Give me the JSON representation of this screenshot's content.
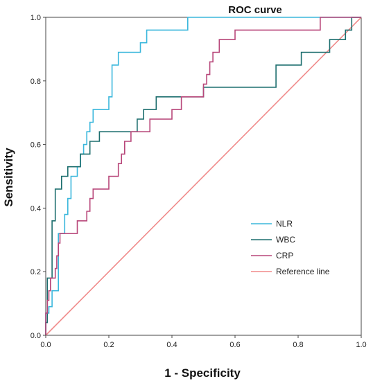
{
  "chart_data": {
    "type": "line",
    "title": "ROC curve",
    "xlabel": "1 - Specificity",
    "ylabel": "Sensitivity",
    "xlim": [
      0,
      1
    ],
    "ylim": [
      0,
      1
    ],
    "x_ticks": [
      "0.0",
      "0.2",
      "0.4",
      "0.6",
      "0.8",
      "1.0"
    ],
    "y_ticks": [
      "0.0",
      "0.2",
      "0.4",
      "0.6",
      "0.8",
      "1.0"
    ],
    "grid": false,
    "legend_position": "bottom-right",
    "series": [
      {
        "name": "NLR",
        "color": "#3ab7dc",
        "points": [
          [
            0,
            0
          ],
          [
            0,
            0.07
          ],
          [
            0.01,
            0.07
          ],
          [
            0.01,
            0.09
          ],
          [
            0.02,
            0.09
          ],
          [
            0.02,
            0.14
          ],
          [
            0.04,
            0.14
          ],
          [
            0.04,
            0.32
          ],
          [
            0.06,
            0.32
          ],
          [
            0.06,
            0.38
          ],
          [
            0.07,
            0.38
          ],
          [
            0.07,
            0.43
          ],
          [
            0.08,
            0.43
          ],
          [
            0.08,
            0.5
          ],
          [
            0.1,
            0.5
          ],
          [
            0.1,
            0.53
          ],
          [
            0.11,
            0.53
          ],
          [
            0.11,
            0.57
          ],
          [
            0.12,
            0.57
          ],
          [
            0.12,
            0.6
          ],
          [
            0.13,
            0.6
          ],
          [
            0.13,
            0.64
          ],
          [
            0.14,
            0.64
          ],
          [
            0.14,
            0.67
          ],
          [
            0.15,
            0.67
          ],
          [
            0.15,
            0.71
          ],
          [
            0.2,
            0.71
          ],
          [
            0.2,
            0.75
          ],
          [
            0.21,
            0.75
          ],
          [
            0.21,
            0.85
          ],
          [
            0.23,
            0.85
          ],
          [
            0.23,
            0.89
          ],
          [
            0.3,
            0.89
          ],
          [
            0.3,
            0.92
          ],
          [
            0.32,
            0.92
          ],
          [
            0.32,
            0.96
          ],
          [
            0.45,
            0.96
          ],
          [
            0.45,
            1
          ],
          [
            1,
            1
          ]
        ]
      },
      {
        "name": "WBC",
        "color": "#1c6e6e",
        "points": [
          [
            0,
            0
          ],
          [
            0,
            0.04
          ],
          [
            0.005,
            0.04
          ],
          [
            0.005,
            0.18
          ],
          [
            0.02,
            0.18
          ],
          [
            0.02,
            0.36
          ],
          [
            0.03,
            0.36
          ],
          [
            0.03,
            0.46
          ],
          [
            0.05,
            0.46
          ],
          [
            0.05,
            0.5
          ],
          [
            0.07,
            0.5
          ],
          [
            0.07,
            0.53
          ],
          [
            0.11,
            0.53
          ],
          [
            0.11,
            0.57
          ],
          [
            0.14,
            0.57
          ],
          [
            0.14,
            0.61
          ],
          [
            0.17,
            0.61
          ],
          [
            0.17,
            0.64
          ],
          [
            0.29,
            0.64
          ],
          [
            0.29,
            0.68
          ],
          [
            0.31,
            0.68
          ],
          [
            0.31,
            0.71
          ],
          [
            0.35,
            0.71
          ],
          [
            0.35,
            0.75
          ],
          [
            0.5,
            0.75
          ],
          [
            0.5,
            0.78
          ],
          [
            0.73,
            0.78
          ],
          [
            0.73,
            0.85
          ],
          [
            0.81,
            0.85
          ],
          [
            0.81,
            0.89
          ],
          [
            0.9,
            0.89
          ],
          [
            0.9,
            0.93
          ],
          [
            0.95,
            0.93
          ],
          [
            0.95,
            0.96
          ],
          [
            0.97,
            0.96
          ],
          [
            0.97,
            1
          ],
          [
            1,
            1
          ]
        ]
      },
      {
        "name": "CRP",
        "color": "#b8477a",
        "points": [
          [
            0,
            0
          ],
          [
            0,
            0.07
          ],
          [
            0.005,
            0.07
          ],
          [
            0.005,
            0.11
          ],
          [
            0.01,
            0.11
          ],
          [
            0.01,
            0.14
          ],
          [
            0.015,
            0.14
          ],
          [
            0.015,
            0.18
          ],
          [
            0.03,
            0.18
          ],
          [
            0.03,
            0.21
          ],
          [
            0.035,
            0.21
          ],
          [
            0.035,
            0.25
          ],
          [
            0.04,
            0.25
          ],
          [
            0.04,
            0.29
          ],
          [
            0.045,
            0.29
          ],
          [
            0.045,
            0.32
          ],
          [
            0.1,
            0.32
          ],
          [
            0.1,
            0.36
          ],
          [
            0.13,
            0.36
          ],
          [
            0.13,
            0.39
          ],
          [
            0.14,
            0.39
          ],
          [
            0.14,
            0.43
          ],
          [
            0.15,
            0.43
          ],
          [
            0.15,
            0.46
          ],
          [
            0.2,
            0.46
          ],
          [
            0.2,
            0.5
          ],
          [
            0.23,
            0.5
          ],
          [
            0.23,
            0.54
          ],
          [
            0.24,
            0.54
          ],
          [
            0.24,
            0.57
          ],
          [
            0.25,
            0.57
          ],
          [
            0.25,
            0.61
          ],
          [
            0.27,
            0.61
          ],
          [
            0.27,
            0.64
          ],
          [
            0.33,
            0.64
          ],
          [
            0.33,
            0.68
          ],
          [
            0.4,
            0.68
          ],
          [
            0.4,
            0.71
          ],
          [
            0.43,
            0.71
          ],
          [
            0.43,
            0.75
          ],
          [
            0.5,
            0.75
          ],
          [
            0.5,
            0.79
          ],
          [
            0.51,
            0.79
          ],
          [
            0.51,
            0.82
          ],
          [
            0.52,
            0.82
          ],
          [
            0.52,
            0.86
          ],
          [
            0.53,
            0.86
          ],
          [
            0.53,
            0.89
          ],
          [
            0.55,
            0.89
          ],
          [
            0.55,
            0.93
          ],
          [
            0.6,
            0.93
          ],
          [
            0.6,
            0.96
          ],
          [
            0.87,
            0.96
          ],
          [
            0.87,
            1
          ],
          [
            1,
            1
          ]
        ]
      },
      {
        "name": "Reference line",
        "color": "#f08a8a",
        "points": [
          [
            0,
            0
          ],
          [
            1,
            1
          ]
        ]
      }
    ]
  }
}
